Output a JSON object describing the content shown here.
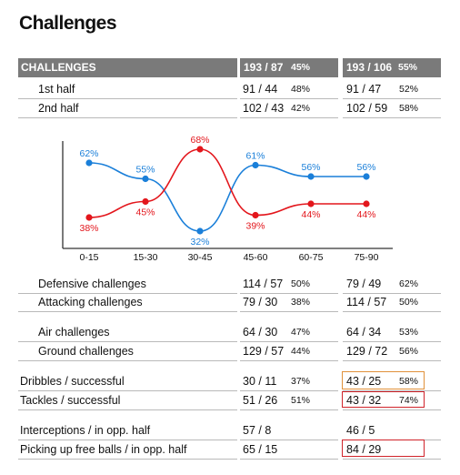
{
  "title": "Challenges",
  "header": {
    "label": "CHALLENGES",
    "team1": {
      "value": "193 / 87",
      "pct": "45%"
    },
    "team2": {
      "value": "193 / 106",
      "pct": "55%"
    }
  },
  "halves": [
    {
      "label": "1st half",
      "t1v": "91 / 44",
      "t1p": "48%",
      "t2v": "91 / 47",
      "t2p": "52%"
    },
    {
      "label": "2nd half",
      "t1v": "102 / 43",
      "t1p": "42%",
      "t2v": "102 / 59",
      "t2p": "58%"
    }
  ],
  "chart_data": {
    "type": "line",
    "categories": [
      "0-15",
      "15-30",
      "30-45",
      "45-60",
      "60-75",
      "75-90"
    ],
    "series": [
      {
        "values": [
          62,
          55,
          32,
          61,
          56,
          56
        ],
        "labels": [
          "62%",
          "55%",
          "32%",
          "61%",
          "56%",
          "56%"
        ],
        "color": "#1a7fd9"
      },
      {
        "values": [
          38,
          45,
          68,
          39,
          44,
          44
        ],
        "labels": [
          "38%",
          "45%",
          "68%",
          "39%",
          "44%",
          "44%"
        ],
        "color": "#e3161c"
      }
    ]
  },
  "rows": [
    {
      "label": "Defensive challenges",
      "t1v": "114 / 57",
      "t1p": "50%",
      "t2v": "79 / 49",
      "t2p": "62%"
    },
    {
      "label": "Attacking challenges",
      "t1v": "79 / 30",
      "t1p": "38%",
      "t2v": "114 / 57",
      "t2p": "50%"
    },
    {
      "label": "Air challenges",
      "t1v": "64 / 30",
      "t1p": "47%",
      "t2v": "64 / 34",
      "t2p": "53%"
    },
    {
      "label": "Ground challenges",
      "t1v": "129 / 57",
      "t1p": "44%",
      "t2v": "129 / 72",
      "t2p": "56%"
    },
    {
      "label": "Dribbles / successful",
      "t1v": "30 / 11",
      "t1p": "37%",
      "t2v": "43 / 25",
      "t2p": "58%"
    },
    {
      "label": "Tackles / successful",
      "t1v": "51 / 26",
      "t1p": "51%",
      "t2v": "43 / 32",
      "t2p": "74%"
    },
    {
      "label": "Interceptions / in opp. half",
      "t1v": "57 / 8",
      "t1p": "",
      "t2v": "46 / 5",
      "t2p": ""
    },
    {
      "label": "Picking up free balls / in opp. half",
      "t1v": "65 / 15",
      "t1p": "",
      "t2v": "84 / 29",
      "t2p": ""
    }
  ],
  "colors": {
    "team1_line": "#1a7fd9",
    "team2_line": "#e3161c",
    "header_bg": "#7a7a7a",
    "highlight_orange": "#e0913a",
    "highlight_red": "#d0232a"
  }
}
